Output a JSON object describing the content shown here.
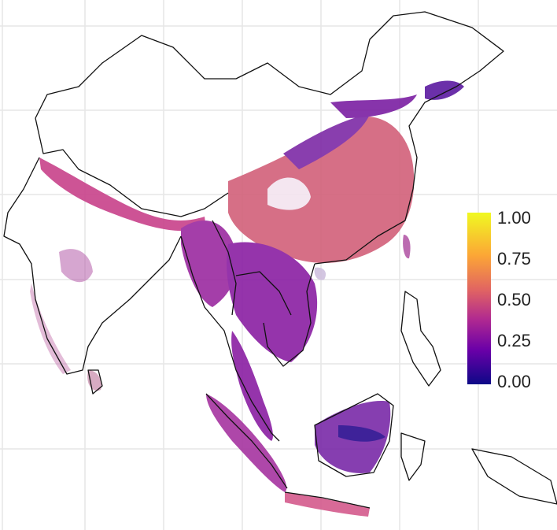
{
  "map": {
    "regions": [
      "india",
      "sri-lanka",
      "himalaya-belt",
      "china",
      "taiwan",
      "hainan",
      "myanmar",
      "indochina",
      "malay-peninsula",
      "sumatra",
      "java",
      "borneo",
      "philippines",
      "sulawesi"
    ],
    "colors": {
      "grid": "#e6e6e6",
      "border": "#111111",
      "low": "#0d0887",
      "mid": "#8f0da4",
      "high": "#f0605d",
      "top": "#f0f921"
    }
  },
  "legend": {
    "ticks": [
      "1.00",
      "0.75",
      "0.50",
      "0.25",
      "0.00"
    ],
    "colors": [
      "#f0f921",
      "#fca636",
      "#e16462",
      "#b12a90",
      "#6a00a8",
      "#0d0887"
    ]
  }
}
